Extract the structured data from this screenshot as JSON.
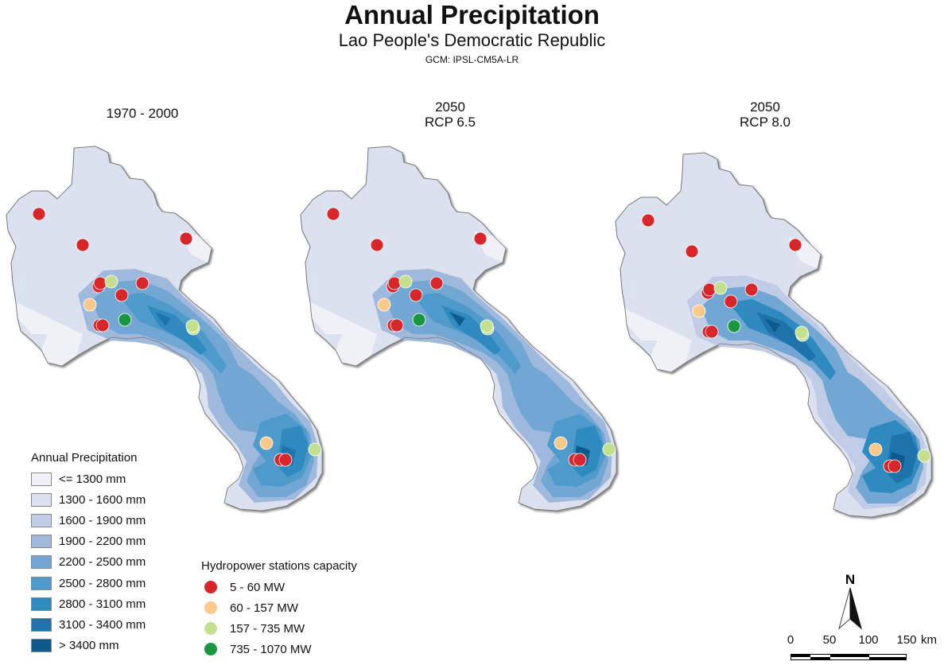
{
  "title": "Annual Precipitation",
  "subtitle": "Lao People's Democratic Republic",
  "gcm_label": "GCM: IPSL-CM5A-LR",
  "panels": [
    {
      "line1": "1970 - 2000",
      "line2": ""
    },
    {
      "line1": "2050",
      "line2": "RCP 6.5"
    },
    {
      "line1": "2050",
      "line2": "RCP 8.0"
    }
  ],
  "precipitation_legend": {
    "title": "Annual Precipitation",
    "classes": [
      {
        "label": "<= 1300 mm",
        "color": "#f0f0f7"
      },
      {
        "label": "1300 - 1600 mm",
        "color": "#dbe1ef"
      },
      {
        "label": "1600 - 1900 mm",
        "color": "#c0cce6"
      },
      {
        "label": "1900 - 2200 mm",
        "color": "#9fb9dd"
      },
      {
        "label": "2200 - 2500 mm",
        "color": "#73a7d3"
      },
      {
        "label": "2500 - 2800 mm",
        "color": "#4e9acb"
      },
      {
        "label": "2800 - 3100 mm",
        "color": "#2f8ac0"
      },
      {
        "label": "3100 - 3400 mm",
        "color": "#1e74aa"
      },
      {
        "label": "> 3400 mm",
        "color": "#0f5a8c"
      }
    ]
  },
  "hydropower_legend": {
    "title": "Hydropower stations capacity",
    "classes": [
      {
        "label": "5 - 60 MW",
        "color": "#d7272a"
      },
      {
        "label": "60 - 157 MW",
        "color": "#fdc98a"
      },
      {
        "label": "157 - 735 MW",
        "color": "#c3e08f"
      },
      {
        "label": "735 - 1070 MW",
        "color": "#1a9641"
      }
    ]
  },
  "north_arrow": "N",
  "scale_bar": {
    "ticks": [
      "0",
      "50",
      "100",
      "150"
    ],
    "unit": "km"
  }
}
